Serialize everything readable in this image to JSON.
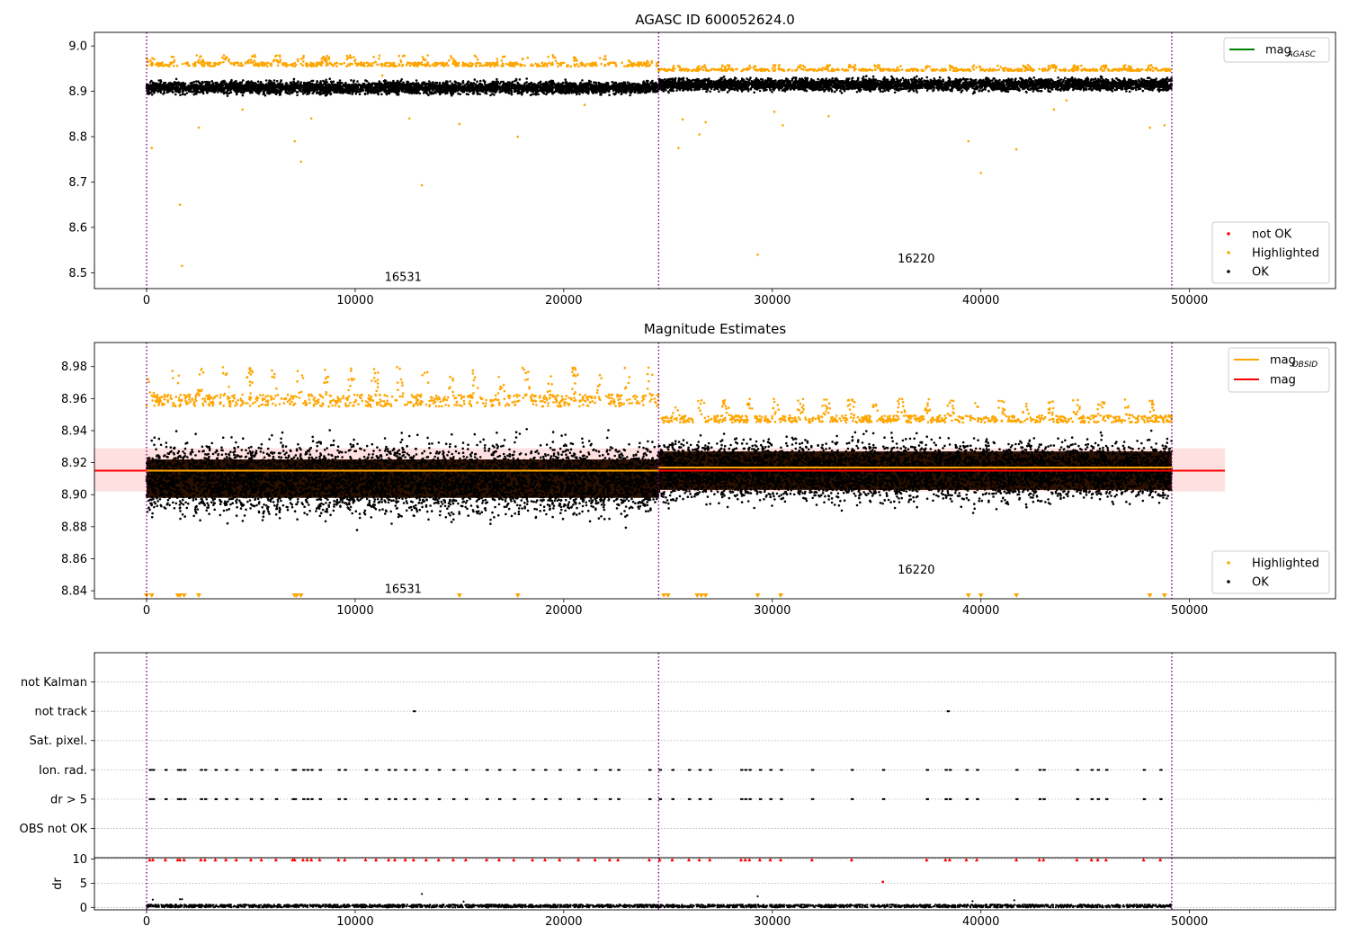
{
  "chart_data": [
    {
      "type": "scatter",
      "title": "AGASC ID 600052624.0",
      "xlim": [
        -2500,
        57000
      ],
      "ylim": [
        8.465,
        9.03
      ],
      "x_ticks": [
        0,
        10000,
        20000,
        30000,
        40000,
        50000
      ],
      "y_ticks": [
        8.5,
        8.6,
        8.7,
        8.8,
        8.9,
        9.0
      ],
      "y_tick_labels": [
        "8.5",
        "8.6",
        "8.7",
        "8.8",
        "8.9",
        "9.0"
      ],
      "x_tick_labels": [
        "0",
        "10000",
        "20000",
        "30000",
        "40000",
        "50000"
      ],
      "obsid_boundaries": [
        0,
        24550,
        49150
      ],
      "obsid_labels": [
        {
          "text": "16531",
          "x": 12300,
          "y": 8.49
        },
        {
          "text": "16220",
          "x": 36900,
          "y": 8.53
        }
      ],
      "legend_top": {
        "position": "upper right",
        "entries": [
          {
            "label_main": "mag",
            "label_sub": "AGASC",
            "color": "#008000",
            "kind": "line"
          }
        ]
      },
      "legend_bottom": {
        "position": "lower right",
        "entries": [
          {
            "label": "not OK",
            "color": "#ff0000"
          },
          {
            "label": "Highlighted",
            "color": "#ffa500"
          },
          {
            "label": "OK",
            "color": "#000000"
          }
        ]
      },
      "series": [
        {
          "name": "OK",
          "color": "#000000",
          "segments": [
            {
              "x0": 0,
              "x1": 24550,
              "center": 8.908,
              "spread": 0.03
            },
            {
              "x0": 24550,
              "x1": 49150,
              "center": 8.915,
              "spread": 0.03
            }
          ]
        },
        {
          "name": "Highlighted",
          "color": "#ffa500",
          "top_bands": [
            {
              "x0": 0,
              "x1": 24550,
              "y0": 8.955,
              "y1": 8.98
            },
            {
              "x0": 24550,
              "x1": 49150,
              "y0": 8.945,
              "y1": 8.958
            }
          ],
          "outliers": [
            [
              250,
              8.775
            ],
            [
              1600,
              8.65
            ],
            [
              1700,
              8.515
            ],
            [
              2500,
              8.82
            ],
            [
              4600,
              8.86
            ],
            [
              7100,
              8.79
            ],
            [
              7400,
              8.745
            ],
            [
              7900,
              8.84
            ],
            [
              11300,
              8.935
            ],
            [
              12600,
              8.84
            ],
            [
              13200,
              8.693
            ],
            [
              15000,
              8.828
            ],
            [
              17800,
              8.8
            ],
            [
              21000,
              8.87
            ],
            [
              25500,
              8.775
            ],
            [
              25700,
              8.838
            ],
            [
              26500,
              8.805
            ],
            [
              26800,
              8.832
            ],
            [
              29300,
              8.54
            ],
            [
              30100,
              8.855
            ],
            [
              30500,
              8.825
            ],
            [
              32700,
              8.845
            ],
            [
              39400,
              8.79
            ],
            [
              40000,
              8.72
            ],
            [
              41700,
              8.772
            ],
            [
              48100,
              8.82
            ],
            [
              48800,
              8.825
            ],
            [
              43500,
              8.86
            ],
            [
              44100,
              8.88
            ]
          ]
        }
      ]
    },
    {
      "type": "scatter",
      "title": "Magnitude Estimates",
      "xlim": [
        -2500,
        57000
      ],
      "ylim": [
        8.835,
        8.995
      ],
      "x_ticks": [
        0,
        10000,
        20000,
        30000,
        40000,
        50000
      ],
      "x_tick_labels": [
        "0",
        "10000",
        "20000",
        "30000",
        "40000",
        "50000"
      ],
      "y_ticks": [
        8.84,
        8.86,
        8.88,
        8.9,
        8.92,
        8.94,
        8.96,
        8.98
      ],
      "y_tick_labels": [
        "8.84",
        "8.86",
        "8.88",
        "8.90",
        "8.92",
        "8.94",
        "8.96",
        "8.98"
      ],
      "obsid_boundaries": [
        0,
        24550,
        49150
      ],
      "obsid_labels": [
        {
          "text": "16531",
          "x": 12300,
          "y": 8.841
        },
        {
          "text": "16220",
          "x": 36900,
          "y": 8.853
        }
      ],
      "mag_line": {
        "value": 8.915,
        "band": [
          8.902,
          8.929
        ],
        "x0": -2500,
        "x1": 51700,
        "color": "#ff0000"
      },
      "mag_obsid_segments": [
        {
          "x0": 0,
          "x1": 24550,
          "value": 8.915
        },
        {
          "x0": 24550,
          "x1": 49150,
          "value": 8.917
        }
      ],
      "legend_top": {
        "position": "upper right",
        "entries": [
          {
            "label_main": "mag",
            "label_sub": "OBSID",
            "color": "#ffa500",
            "kind": "line"
          },
          {
            "label_main": "mag",
            "label_sub": "",
            "color": "#ff0000",
            "kind": "line"
          }
        ]
      },
      "legend_bottom": {
        "position": "lower right",
        "entries": [
          {
            "label": "Highlighted",
            "color": "#ffa500"
          },
          {
            "label": "OK",
            "color": "#000000"
          }
        ]
      },
      "series": [
        {
          "name": "OK",
          "color": "#000000",
          "segments": [
            {
              "x0": 0,
              "x1": 24550,
              "center": 8.91,
              "spread": 0.035
            },
            {
              "x0": 24550,
              "x1": 49150,
              "center": 8.915,
              "spread": 0.03
            }
          ]
        },
        {
          "name": "Highlighted",
          "color": "#ffa500",
          "top_bands": [
            {
              "x0": 0,
              "x1": 24550,
              "y0": 8.955,
              "y1": 8.98
            },
            {
              "x0": 24550,
              "x1": 49150,
              "y0": 8.945,
              "y1": 8.96
            }
          ],
          "offscale_markers_x": [
            0,
            250,
            1500,
            1600,
            1800,
            2500,
            7100,
            7200,
            7400,
            15000,
            17800,
            24800,
            25000,
            26400,
            26600,
            26800,
            29300,
            30400,
            39400,
            40000,
            41700,
            48100,
            48800
          ]
        }
      ]
    },
    {
      "type": "scatter",
      "title": "",
      "xlim": [
        -2500,
        57000
      ],
      "categories": [
        "not Kalman",
        "not track",
        "Sat. pixel.",
        "Ion. rad.",
        "dr > 5",
        "OBS not OK"
      ],
      "obsid_boundaries": [
        0,
        24550,
        49150
      ],
      "flag_points": [
        {
          "category": "not track",
          "x": [
            12800,
            38400
          ]
        },
        {
          "category": "Ion. rad.",
          "x": [
            150,
            300,
            900,
            1500,
            1600,
            1800,
            2600,
            2800,
            3300,
            3800,
            4300,
            5000,
            5500,
            6200,
            7000,
            7100,
            7500,
            7700,
            7900,
            8300,
            9200,
            9500,
            10500,
            11000,
            11600,
            11900,
            12400,
            12800,
            13400,
            14000,
            14700,
            15300,
            16300,
            16900,
            17600,
            18500,
            19100,
            19800,
            20700,
            21500,
            22200,
            22600,
            24100,
            24600,
            25200,
            26000,
            26500,
            27000,
            28500,
            28700,
            28900,
            29400,
            29900,
            30400,
            31900,
            33800,
            35300,
            37400,
            38300,
            38500,
            39300,
            39800,
            41700,
            42800,
            43000,
            44600,
            45300,
            45600,
            46000,
            47800,
            48600
          ]
        },
        {
          "category": "dr > 5",
          "x": [
            150,
            300,
            900,
            1500,
            1600,
            1800,
            2600,
            2800,
            3300,
            3800,
            4300,
            5000,
            5500,
            6200,
            7000,
            7100,
            7500,
            7700,
            7900,
            8300,
            9200,
            9500,
            10500,
            11000,
            11600,
            11900,
            12400,
            12800,
            13400,
            14000,
            14700,
            15300,
            16300,
            16900,
            17600,
            18500,
            19100,
            19800,
            20700,
            21500,
            22200,
            22600,
            24100,
            24600,
            25200,
            26000,
            26500,
            27000,
            28500,
            28700,
            28900,
            29400,
            29900,
            30400,
            31900,
            33800,
            35300,
            37400,
            38300,
            38500,
            39300,
            39800,
            41700,
            42800,
            43000,
            44600,
            45300,
            45600,
            46000,
            47800,
            48600
          ]
        }
      ]
    },
    {
      "type": "scatter",
      "title": "",
      "xlim": [
        -2500,
        57000
      ],
      "ylim": [
        -0.5,
        10.3
      ],
      "ylabel": "dr",
      "y_ticks": [
        0,
        5,
        10
      ],
      "y_tick_labels": [
        "0",
        "5",
        "10"
      ],
      "x_ticks": [
        0,
        10000,
        20000,
        30000,
        40000,
        50000
      ],
      "x_tick_labels": [
        "0",
        "10000",
        "20000",
        "30000",
        "40000",
        "50000"
      ],
      "obsid_boundaries": [
        0,
        24550,
        49150
      ],
      "series": [
        {
          "name": "OK",
          "color": "#000000",
          "baseline": {
            "x0": 0,
            "x1": 49150,
            "y0": 0,
            "y1": 0.6
          },
          "outliers": [
            [
              300,
              1.6
            ],
            [
              1600,
              1.7
            ],
            [
              1700,
              1.7
            ],
            [
              13200,
              2.8
            ],
            [
              15200,
              1.2
            ],
            [
              29300,
              2.3
            ],
            [
              39600,
              1.3
            ],
            [
              41600,
              1.5
            ]
          ]
        },
        {
          "name": "not OK",
          "color": "#ff0000",
          "clipped_at_top": true,
          "x": [
            150,
            300,
            900,
            1500,
            1600,
            1800,
            2600,
            2800,
            3300,
            3800,
            4300,
            5000,
            5500,
            6200,
            7000,
            7100,
            7500,
            7700,
            7900,
            8300,
            9200,
            9500,
            10500,
            11000,
            11600,
            11900,
            12400,
            12800,
            13400,
            14000,
            14700,
            15300,
            16300,
            16900,
            17600,
            18500,
            19100,
            19800,
            20700,
            21500,
            22200,
            22600,
            24100,
            24600,
            25200,
            26000,
            26500,
            27000,
            28500,
            28700,
            28900,
            29400,
            29900,
            30400,
            31900,
            33800,
            37400,
            38300,
            38500,
            39300,
            39800,
            41700,
            42800,
            43000,
            44600,
            45300,
            45600,
            46000,
            47800,
            48600
          ],
          "points": [
            [
              35300,
              5.3
            ]
          ]
        }
      ]
    }
  ]
}
